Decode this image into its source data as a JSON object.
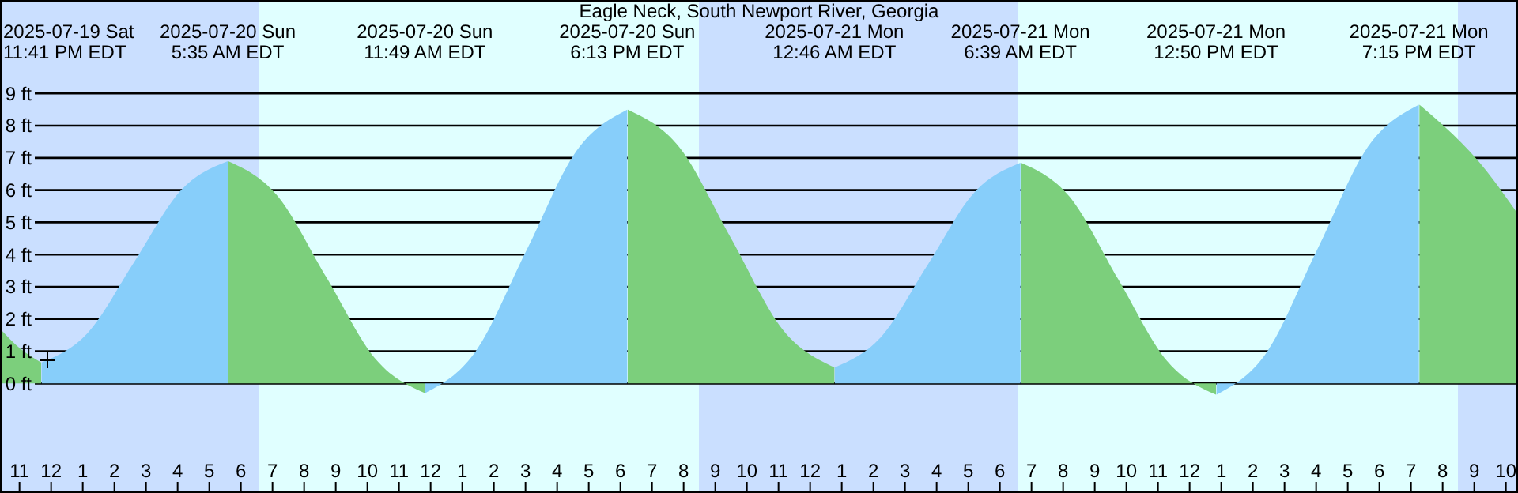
{
  "chart_data": {
    "type": "area",
    "title": "Eagle Neck, South Newport River, Georgia",
    "series": [
      {
        "color": "#7ccf7c",
        "x": [
          "2025-07-19T22:23",
          "2025-07-19T23:00",
          "2025-07-19T23:41"
        ],
        "values": [
          1.7,
          1.1,
          0.65
        ]
      },
      {
        "color": "#87cefa",
        "x": [
          "2025-07-19T23:42",
          "2025-07-20T01:09",
          "2025-07-20T02:38",
          "2025-07-20T04:06",
          "2025-07-20T05:35"
        ],
        "values": [
          0.65,
          1.56,
          3.78,
          5.99,
          6.9
        ]
      },
      {
        "color": "#7ccf7c",
        "x": [
          "2025-07-20T05:36",
          "2025-07-20T07:08",
          "2025-07-20T08:42",
          "2025-07-20T10:16",
          "2025-07-20T11:49"
        ],
        "values": [
          6.9,
          5.85,
          3.3,
          0.75,
          -0.3
        ]
      },
      {
        "color": "#87cefa",
        "x": [
          "2025-07-20T11:50",
          "2025-07-20T13:25",
          "2025-07-20T15:01",
          "2025-07-20T16:37",
          "2025-07-20T18:13"
        ],
        "values": [
          -0.3,
          0.98,
          4.1,
          7.22,
          8.5
        ]
      },
      {
        "color": "#7ccf7c",
        "x": [
          "2025-07-20T18:14",
          "2025-07-20T19:52",
          "2025-07-20T21:30",
          "2025-07-20T23:08",
          "2025-07-21T00:46"
        ],
        "values": [
          8.5,
          7.33,
          4.5,
          1.67,
          0.5
        ]
      },
      {
        "color": "#87cefa",
        "x": [
          "2025-07-21T00:47",
          "2025-07-21T02:14",
          "2025-07-21T03:43",
          "2025-07-21T05:11",
          "2025-07-21T06:39"
        ],
        "values": [
          0.5,
          1.43,
          3.68,
          5.92,
          6.85
        ]
      },
      {
        "color": "#7ccf7c",
        "x": [
          "2025-07-21T06:40",
          "2025-07-21T08:12",
          "2025-07-21T09:44",
          "2025-07-21T11:17",
          "2025-07-21T12:50"
        ],
        "values": [
          6.85,
          5.8,
          3.25,
          0.7,
          -0.35
        ]
      },
      {
        "color": "#87cefa",
        "x": [
          "2025-07-21T12:51",
          "2025-07-21T14:26",
          "2025-07-21T16:02",
          "2025-07-21T17:38",
          "2025-07-21T19:15"
        ],
        "values": [
          -0.35,
          0.96,
          4.15,
          7.34,
          8.65
        ]
      },
      {
        "color": "#7ccf7c",
        "x": [
          "2025-07-21T19:16",
          "2025-07-21T21:23",
          "2025-07-21T22:23"
        ],
        "values": [
          8.65,
          6.6,
          5.25
        ]
      }
    ],
    "xlim": [
      "2025-07-19T22:23",
      "2025-07-21T22:23"
    ],
    "xticks": [
      {
        "value": "2025-07-19T23:00",
        "label": "11"
      },
      {
        "value": "2025-07-20T00:00",
        "label": "12"
      },
      {
        "value": "2025-07-20T01:00",
        "label": "1"
      },
      {
        "value": "2025-07-20T02:00",
        "label": "2"
      },
      {
        "value": "2025-07-20T03:00",
        "label": "3"
      },
      {
        "value": "2025-07-20T04:00",
        "label": "4"
      },
      {
        "value": "2025-07-20T05:00",
        "label": "5"
      },
      {
        "value": "2025-07-20T06:00",
        "label": "6"
      },
      {
        "value": "2025-07-20T07:00",
        "label": "7"
      },
      {
        "value": "2025-07-20T08:00",
        "label": "8"
      },
      {
        "value": "2025-07-20T09:00",
        "label": "9"
      },
      {
        "value": "2025-07-20T10:00",
        "label": "10"
      },
      {
        "value": "2025-07-20T11:00",
        "label": "11"
      },
      {
        "value": "2025-07-20T12:00",
        "label": "12"
      },
      {
        "value": "2025-07-20T13:00",
        "label": "1"
      },
      {
        "value": "2025-07-20T14:00",
        "label": "2"
      },
      {
        "value": "2025-07-20T15:00",
        "label": "3"
      },
      {
        "value": "2025-07-20T16:00",
        "label": "4"
      },
      {
        "value": "2025-07-20T17:00",
        "label": "5"
      },
      {
        "value": "2025-07-20T18:00",
        "label": "6"
      },
      {
        "value": "2025-07-20T19:00",
        "label": "7"
      },
      {
        "value": "2025-07-20T20:00",
        "label": "8"
      },
      {
        "value": "2025-07-20T21:00",
        "label": "9"
      },
      {
        "value": "2025-07-20T22:00",
        "label": "10"
      },
      {
        "value": "2025-07-20T23:00",
        "label": "11"
      },
      {
        "value": "2025-07-21T00:00",
        "label": "12"
      },
      {
        "value": "2025-07-21T01:00",
        "label": "1"
      },
      {
        "value": "2025-07-21T02:00",
        "label": "2"
      },
      {
        "value": "2025-07-21T03:00",
        "label": "3"
      },
      {
        "value": "2025-07-21T04:00",
        "label": "4"
      },
      {
        "value": "2025-07-21T05:00",
        "label": "5"
      },
      {
        "value": "2025-07-21T06:00",
        "label": "6"
      },
      {
        "value": "2025-07-21T07:00",
        "label": "7"
      },
      {
        "value": "2025-07-21T08:00",
        "label": "8"
      },
      {
        "value": "2025-07-21T09:00",
        "label": "9"
      },
      {
        "value": "2025-07-21T10:00",
        "label": "10"
      },
      {
        "value": "2025-07-21T11:00",
        "label": "11"
      },
      {
        "value": "2025-07-21T12:00",
        "label": "12"
      },
      {
        "value": "2025-07-21T13:00",
        "label": "1"
      },
      {
        "value": "2025-07-21T14:00",
        "label": "2"
      },
      {
        "value": "2025-07-21T15:00",
        "label": "3"
      },
      {
        "value": "2025-07-21T16:00",
        "label": "4"
      },
      {
        "value": "2025-07-21T17:00",
        "label": "5"
      },
      {
        "value": "2025-07-21T18:00",
        "label": "6"
      },
      {
        "value": "2025-07-21T19:00",
        "label": "7"
      },
      {
        "value": "2025-07-21T20:00",
        "label": "8"
      },
      {
        "value": "2025-07-21T21:00",
        "label": "9"
      },
      {
        "value": "2025-07-21T22:00",
        "label": "10"
      }
    ],
    "ylim": [
      -3.4,
      11.9
    ],
    "yticks": [
      {
        "value": 0,
        "label": "0 ft"
      },
      {
        "value": 1,
        "label": "1 ft"
      },
      {
        "value": 2,
        "label": "2 ft"
      },
      {
        "value": 3,
        "label": "3 ft"
      },
      {
        "value": 4,
        "label": "4 ft"
      },
      {
        "value": 5,
        "label": "5 ft"
      },
      {
        "value": 6,
        "label": "6 ft"
      },
      {
        "value": 7,
        "label": "7 ft"
      },
      {
        "value": 8,
        "label": "8 ft"
      },
      {
        "value": 9,
        "label": "9 ft"
      }
    ],
    "grid": "y",
    "bands": [
      {
        "axis": "x",
        "from": "2025-07-19T22:23",
        "to": "2025-07-20T06:34",
        "color": "#cadfff"
      },
      {
        "axis": "x",
        "from": "2025-07-20T06:34",
        "to": "2025-07-20T20:29",
        "color": "#e0ffff"
      },
      {
        "axis": "x",
        "from": "2025-07-20T20:29",
        "to": "2025-07-21T06:34",
        "color": "#cadfff"
      },
      {
        "axis": "x",
        "from": "2025-07-21T06:34",
        "to": "2025-07-21T20:29",
        "color": "#e0ffff"
      },
      {
        "axis": "x",
        "from": "2025-07-21T20:29",
        "to": "2025-07-21T22:23",
        "color": "#cadfff"
      }
    ],
    "annotations": [
      "2025-07-19 Sat\n11:41 PM EDT",
      "2025-07-20 Sun\n5:35 AM EDT",
      "2025-07-20 Sun\n11:49 AM EDT",
      "2025-07-20 Sun\n6:13 PM EDT",
      "2025-07-21 Mon\n12:46 AM EDT",
      "2025-07-21 Mon\n6:39 AM EDT",
      "2025-07-21 Mon\n12:50 PM EDT",
      "2025-07-21 Mon\n7:15 PM EDT"
    ]
  }
}
